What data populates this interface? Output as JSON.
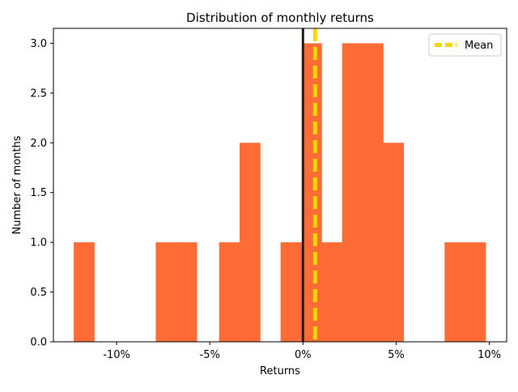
{
  "chart_data": {
    "type": "bar",
    "title": "Distribution of monthly returns",
    "xlabel": "Returns",
    "ylabel": "Number of months",
    "xlim": [
      -13.39,
      10.93
    ],
    "ylim": [
      0,
      3.15
    ],
    "x_ticks": [
      {
        "value": -10,
        "label": "-10%"
      },
      {
        "value": -5,
        "label": "-5%"
      },
      {
        "value": 0,
        "label": "0%"
      },
      {
        "value": 5,
        "label": "5%"
      },
      {
        "value": 10,
        "label": "10%"
      }
    ],
    "y_ticks": [
      {
        "value": 0,
        "label": "0.0"
      },
      {
        "value": 0.5,
        "label": "0.5"
      },
      {
        "value": 1,
        "label": "1.0"
      },
      {
        "value": 1.5,
        "label": "1.5"
      },
      {
        "value": 2,
        "label": "2.0"
      },
      {
        "value": 2.5,
        "label": "2.5"
      },
      {
        "value": 3,
        "label": "3.0"
      }
    ],
    "bins": [
      {
        "x0": -12.3,
        "x1": -11.2,
        "count": 1
      },
      {
        "x0": -7.9,
        "x1": -6.8,
        "count": 1
      },
      {
        "x0": -6.8,
        "x1": -5.7,
        "count": 1
      },
      {
        "x0": -4.5,
        "x1": -3.4,
        "count": 1
      },
      {
        "x0": -3.4,
        "x1": -2.3,
        "count": 2
      },
      {
        "x0": -1.2,
        "x1": 0.0,
        "count": 1
      },
      {
        "x0": 0.0,
        "x1": 1.0,
        "count": 3
      },
      {
        "x0": 1.0,
        "x1": 2.1,
        "count": 1
      },
      {
        "x0": 2.1,
        "x1": 3.2,
        "count": 3
      },
      {
        "x0": 3.2,
        "x1": 4.3,
        "count": 3
      },
      {
        "x0": 4.3,
        "x1": 5.4,
        "count": 2
      },
      {
        "x0": 7.6,
        "x1": 8.7,
        "count": 1
      },
      {
        "x0": 8.7,
        "x1": 9.8,
        "count": 1
      }
    ],
    "zero_line": 0,
    "mean": 0.65,
    "legend": {
      "placement": "top-right",
      "entries": [
        {
          "label": "Mean",
          "color": "#ffd700",
          "style": "dashed"
        }
      ]
    },
    "colors": {
      "bars": "#ff6b35",
      "zero_line": "#2b1a12",
      "mean_line": "#ffd700"
    }
  }
}
